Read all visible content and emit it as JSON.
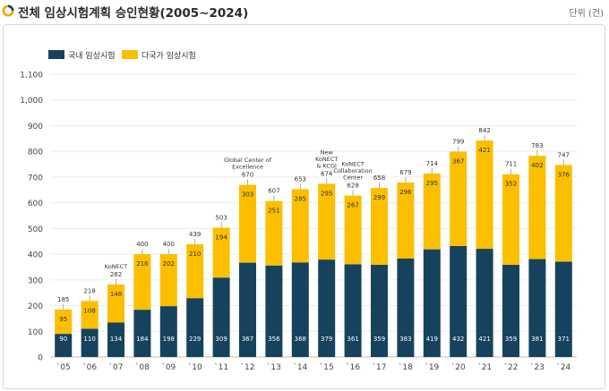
{
  "header": {
    "title": "전체 임상시험계획 승인현황(2005~2024)",
    "unit": "단위 (건)"
  },
  "colors": {
    "domestic": "#16425e",
    "multinational": "#fbbf00",
    "accent": "#f0a800"
  },
  "chart_data": {
    "type": "bar",
    "stacked": true,
    "categories": [
      "`05",
      "`06",
      "`07",
      "`08",
      "`09",
      "`10",
      "`11",
      "`12",
      "`13",
      "`14",
      "`15",
      "`16",
      "`17",
      "`18",
      "`19",
      "`20",
      "`21",
      "`22",
      "`23",
      "`24"
    ],
    "series": [
      {
        "name": "국내 임상시험",
        "values": [
          90,
          110,
          134,
          184,
          198,
          229,
          309,
          367,
          356,
          368,
          379,
          361,
          359,
          383,
          419,
          432,
          421,
          359,
          381,
          371
        ]
      },
      {
        "name": "다국가 임상시험",
        "values": [
          95,
          108,
          148,
          216,
          202,
          210,
          194,
          303,
          251,
          285,
          295,
          267,
          299,
          296,
          295,
          367,
          421,
          352,
          402,
          376
        ]
      }
    ],
    "totals": [
      185,
      218,
      282,
      400,
      400,
      439,
      503,
      670,
      607,
      653,
      674,
      628,
      658,
      679,
      714,
      799,
      842,
      711,
      783,
      747
    ],
    "ylim": [
      0,
      1100
    ],
    "yticks": [
      "0",
      "100",
      "200",
      "300",
      "400",
      "500",
      "600",
      "700",
      "800",
      "900",
      "1,000",
      "1,100"
    ],
    "grid": true,
    "legend": "top-left",
    "annotations": [
      {
        "category": "`07",
        "lines": [
          "KoNECT"
        ]
      },
      {
        "category": "`12",
        "lines": [
          "Global Center of",
          "Excellence"
        ]
      },
      {
        "category": "`15",
        "lines": [
          "New",
          "KoNECT",
          "& KCGI"
        ]
      },
      {
        "category": "`16",
        "lines": [
          "KoNECT",
          "Collaboration",
          "Center"
        ]
      }
    ]
  }
}
